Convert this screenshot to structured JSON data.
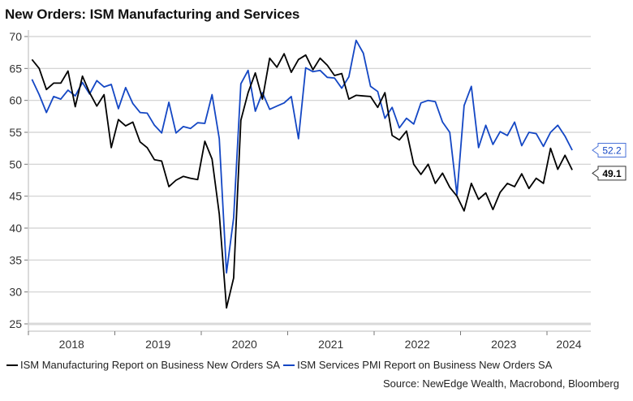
{
  "chart_data": {
    "type": "line",
    "title": "New Orders: ISM Manufacturing and Services",
    "xlabel": "",
    "ylabel": "",
    "ylim": [
      25,
      70
    ],
    "yticks": [
      25,
      30,
      35,
      40,
      45,
      50,
      55,
      60,
      65,
      70
    ],
    "grid": true,
    "x_start": "2018-01",
    "x_end": "2024-04",
    "frequency": "monthly",
    "xtick_labels": [
      "2018",
      "2019",
      "2020",
      "2021",
      "2022",
      "2023",
      "2024"
    ],
    "legend_position": "bottom",
    "series": [
      {
        "name": "ISM Manufacturing Report on Business New Orders SA",
        "color": "#000000",
        "last_value_label": "49.1",
        "values": [
          66.4,
          65.0,
          61.7,
          62.7,
          62.7,
          64.6,
          59.0,
          63.8,
          61.2,
          59.1,
          60.9,
          52.6,
          57.0,
          56.0,
          56.6,
          53.5,
          52.6,
          50.7,
          50.5,
          46.5,
          47.5,
          48.1,
          47.8,
          47.6,
          53.6,
          50.8,
          42.2,
          27.5,
          32.2,
          56.9,
          61.2,
          64.3,
          60.2,
          66.6,
          65.2,
          67.3,
          64.4,
          66.4,
          67.1,
          64.8,
          66.6,
          65.5,
          63.9,
          64.2,
          60.2,
          60.8,
          60.7,
          60.6,
          58.9,
          61.2,
          54.5,
          53.8,
          55.2,
          50.0,
          48.4,
          50.0,
          47.0,
          48.6,
          46.4,
          45.0,
          42.7,
          47.0,
          44.5,
          45.5,
          42.9,
          45.6,
          47.0,
          46.5,
          48.5,
          46.2,
          47.8,
          47.0,
          52.5,
          49.2,
          51.4,
          49.1
        ]
      },
      {
        "name": "ISM Services PMI Report on Business New Orders SA",
        "color": "#1447c4",
        "last_value_label": "52.2",
        "values": [
          63.3,
          60.9,
          58.1,
          60.6,
          60.2,
          61.6,
          60.7,
          62.8,
          61.0,
          63.1,
          62.1,
          62.5,
          58.7,
          62.0,
          59.5,
          58.1,
          58.0,
          56.1,
          54.9,
          59.7,
          54.9,
          55.9,
          55.6,
          56.5,
          56.4,
          60.9,
          54.0,
          33.0,
          41.6,
          62.6,
          64.7,
          58.3,
          61.2,
          58.6,
          59.1,
          59.6,
          60.6,
          54.0,
          65.1,
          64.5,
          64.7,
          63.6,
          63.5,
          61.9,
          63.7,
          69.4,
          67.4,
          62.2,
          61.4,
          57.2,
          58.9,
          55.7,
          57.2,
          56.3,
          59.6,
          60.0,
          59.8,
          56.6,
          55.0,
          45.2,
          59.2,
          62.2,
          52.6,
          56.1,
          53.1,
          55.1,
          54.5,
          56.6,
          52.9,
          55.0,
          54.8,
          52.8,
          55.0,
          56.1,
          54.4,
          52.2
        ]
      }
    ],
    "source": "Source: NewEdge Wealth, Macrobond, Bloomberg"
  }
}
